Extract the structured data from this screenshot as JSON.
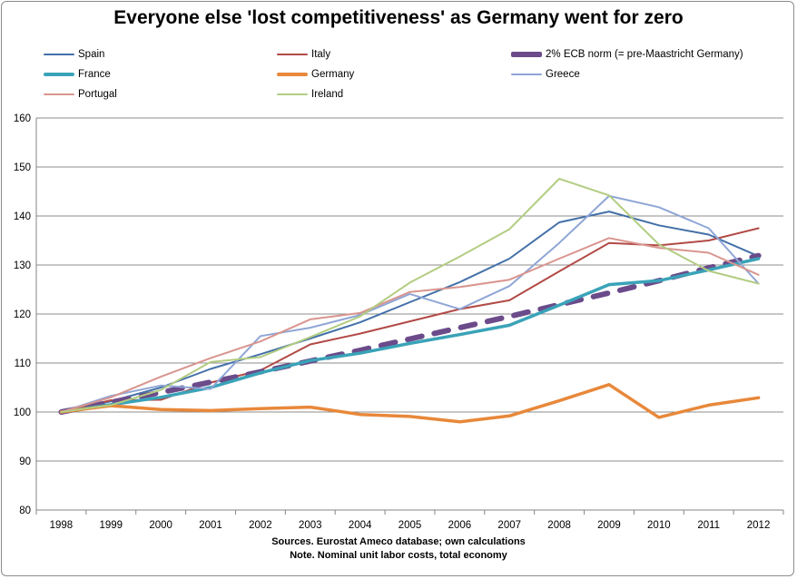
{
  "chart_data": {
    "type": "line",
    "title": "Everyone else 'lost competitiveness' as Germany went for zero",
    "xlabel": "",
    "ylabel": "",
    "x": [
      1998,
      1999,
      2000,
      2001,
      2002,
      2003,
      2004,
      2005,
      2006,
      2007,
      2008,
      2009,
      2010,
      2011,
      2012
    ],
    "ylim": [
      80,
      160
    ],
    "yticks": [
      80,
      90,
      100,
      110,
      120,
      130,
      140,
      150,
      160
    ],
    "grid": true,
    "legend_position": "top",
    "series": [
      {
        "name": "Spain",
        "color": "#4370a8",
        "style": "solid",
        "values": [
          100,
          102.2,
          105,
          108.8,
          111.8,
          115,
          118.3,
          122.4,
          126.5,
          131.3,
          138.7,
          140.9,
          138.1,
          136.2,
          131.8
        ]
      },
      {
        "name": "Italy",
        "color": "#b24a46",
        "style": "solid",
        "values": [
          100,
          102.4,
          102.5,
          106,
          108.5,
          113.8,
          116,
          118.5,
          121,
          122.8,
          128.7,
          134.5,
          134,
          135,
          137.5
        ]
      },
      {
        "name": "2% ECB norm (= pre-Maastricht Germany)",
        "color": "#6b4b8a",
        "style": "dashed",
        "values": [
          100,
          102,
          104,
          106.1,
          108.2,
          110.4,
          112.6,
          114.9,
          117.2,
          119.5,
          121.9,
          124.3,
          126.8,
          129.4,
          131.9
        ]
      },
      {
        "name": "France",
        "color": "#3aa3b8",
        "style": "solid",
        "values": [
          100,
          101.5,
          103,
          105,
          108,
          110.5,
          112,
          114,
          115.8,
          117.7,
          121.8,
          126,
          126.8,
          129,
          131.3
        ]
      },
      {
        "name": "Germany",
        "color": "#e8883a",
        "style": "solid",
        "values": [
          100,
          101.3,
          100.5,
          100.3,
          100.7,
          101,
          99.5,
          99.1,
          98,
          99.2,
          102.3,
          105.6,
          98.9,
          101.4,
          102.9
        ]
      },
      {
        "name": "Greece",
        "color": "#8fa6d6",
        "style": "solid",
        "values": [
          100,
          103.3,
          105.4,
          104.7,
          115.5,
          117.2,
          119.8,
          124.1,
          121,
          125.7,
          134.5,
          144.1,
          141.8,
          137.5,
          126.2
        ]
      },
      {
        "name": "Portugal",
        "color": "#d9958f",
        "style": "solid",
        "values": [
          100,
          103,
          107.2,
          111,
          114.4,
          118.9,
          120.2,
          124.5,
          125.5,
          127,
          131.3,
          135.5,
          133.5,
          132.5,
          128
        ]
      },
      {
        "name": "Ireland",
        "color": "#b3cc82",
        "style": "solid",
        "values": [
          100,
          101.4,
          104.5,
          110.2,
          111.2,
          115.3,
          119.5,
          126.4,
          131.7,
          137.3,
          147.6,
          144.2,
          134.2,
          128.8,
          126.2
        ]
      }
    ]
  },
  "notes": {
    "line1": "Sources. Eurostat Ameco database; own calculations",
    "line2": "Note. Nominal unit labor costs, total economy"
  }
}
